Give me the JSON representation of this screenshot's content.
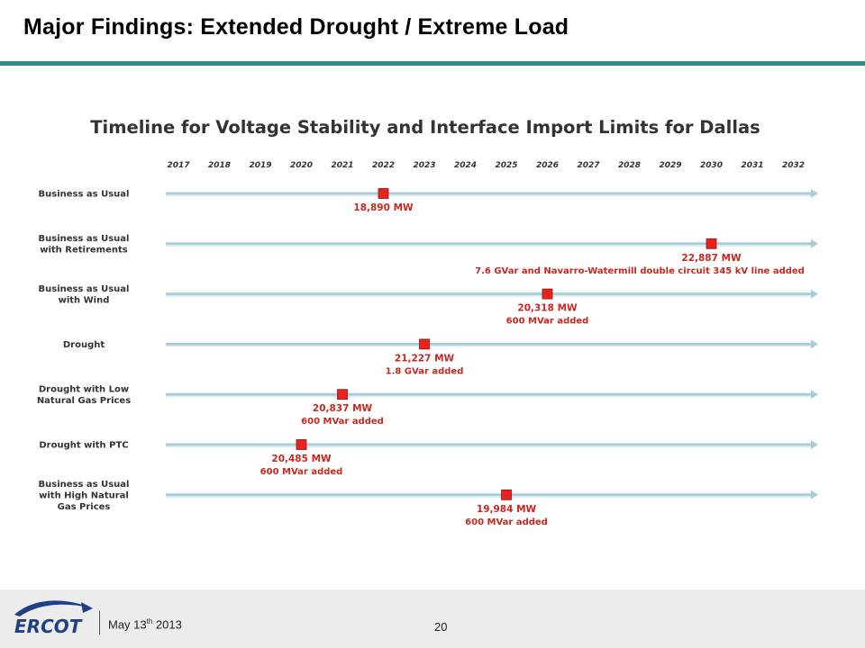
{
  "slide": {
    "title": "Major Findings:  Extended Drought / Extreme Load"
  },
  "footer": {
    "logo_text": "ERCOT",
    "date_prefix": "May 13",
    "date_sup": "th",
    "date_suffix": " 2013",
    "page_number": "20"
  },
  "colors": {
    "accent": "#2f8f86",
    "marker": "#e8231f",
    "label": "#c8281f",
    "timeline": "#a9cdd8"
  },
  "chart_data": {
    "type": "timeline",
    "title": "Timeline for Voltage Stability and Interface Import Limits for Dallas",
    "years": [
      "2017",
      "2018",
      "2019",
      "2020",
      "2021",
      "2022",
      "2023",
      "2024",
      "2025",
      "2026",
      "2027",
      "2028",
      "2029",
      "2030",
      "2031",
      "2032"
    ],
    "series": [
      {
        "name": "Business as Usual",
        "name_lines": [
          "Business as Usual"
        ],
        "year": 2022,
        "value": "18,890 MW",
        "note": ""
      },
      {
        "name": "Business as Usual with Retirements",
        "name_lines": [
          "Business as Usual",
          "with Retirements"
        ],
        "year": 2030,
        "value": "22,887 MW",
        "note": "7.6 GVar and Navarro-Watermill double circuit 345 kV line added"
      },
      {
        "name": "Business as Usual with Wind",
        "name_lines": [
          "Business as Usual",
          "with Wind"
        ],
        "year": 2026,
        "value": "20,318 MW",
        "note": "600 MVar added"
      },
      {
        "name": "Drought",
        "name_lines": [
          "Drought"
        ],
        "year": 2023,
        "value": "21,227 MW",
        "note": "1.8 GVar added"
      },
      {
        "name": "Drought with Low Natural Gas Prices",
        "name_lines": [
          "Drought with Low",
          "Natural Gas Prices"
        ],
        "year": 2021,
        "value": "20,837 MW",
        "note": "600 MVar added"
      },
      {
        "name": "Drought with PTC",
        "name_lines": [
          "Drought with PTC"
        ],
        "year": 2020,
        "value": "20,485 MW",
        "note": "600 MVar added"
      },
      {
        "name": "Business as Usual with High Natural Gas Prices",
        "name_lines": [
          "Business as Usual",
          "with High Natural",
          "Gas Prices"
        ],
        "year": 2025,
        "value": "19,984 MW",
        "note": "600 MVar added"
      }
    ]
  }
}
